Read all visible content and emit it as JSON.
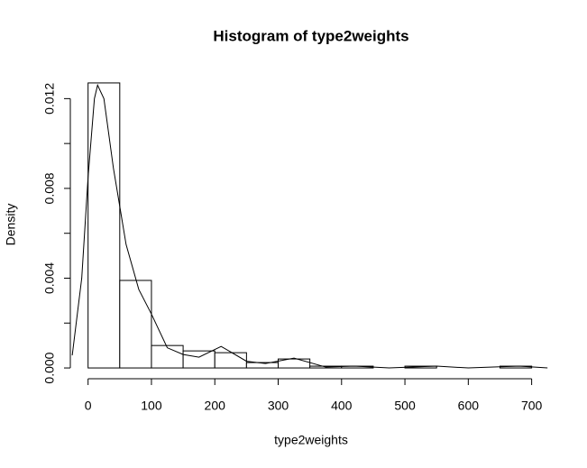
{
  "chart_data": {
    "type": "histogram",
    "title": "Histogram of type2weights",
    "x_label": "type2weights",
    "y_label": "Density",
    "bins": [
      0,
      50,
      100,
      150,
      200,
      250,
      300,
      350,
      400,
      450,
      500,
      550,
      600,
      650,
      700
    ],
    "values": [
      0.0127,
      0.0039,
      0.001,
      0.00076,
      0.00068,
      0.00024,
      0.0004,
      8e-05,
      8e-05,
      0,
      8e-05,
      0,
      0,
      8e-05
    ],
    "color": "#ffffff",
    "density": {
      "x": [
        -25,
        -10,
        0,
        10,
        15,
        25,
        40,
        60,
        80,
        100,
        125,
        150,
        175,
        210,
        250,
        280,
        325,
        375,
        420,
        475,
        550,
        600,
        680,
        725
      ],
      "y": [
        0.00056,
        0.004,
        0.0085,
        0.012,
        0.0126,
        0.012,
        0.0089,
        0.0055,
        0.0035,
        0.0024,
        0.0009,
        0.0006,
        0.00048,
        0.00096,
        0.0003,
        0.0002,
        0.00044,
        4e-05,
        8e-05,
        0,
        8e-05,
        0,
        8e-05,
        0
      ]
    },
    "xlim": [
      -28,
      729
    ],
    "ylim": [
      -0.00048,
      0.01318
    ],
    "xticks": [
      0,
      100,
      200,
      300,
      400,
      500,
      600,
      700
    ],
    "yticks": [
      {
        "value": 0,
        "label": "0.000"
      },
      {
        "value": 0.002,
        "label": null
      },
      {
        "value": 0.004,
        "label": "0.004"
      },
      {
        "value": 0.006,
        "label": null
      },
      {
        "value": 0.008,
        "label": "0.008"
      },
      {
        "value": 0.01,
        "label": null
      },
      {
        "value": 0.012,
        "label": "0.012"
      }
    ]
  }
}
